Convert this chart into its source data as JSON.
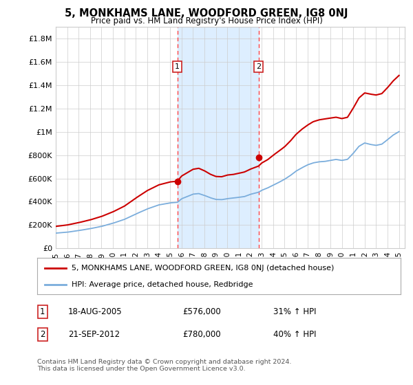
{
  "title": "5, MONKHAMS LANE, WOODFORD GREEN, IG8 0NJ",
  "subtitle": "Price paid vs. HM Land Registry's House Price Index (HPI)",
  "hpi_label": "HPI: Average price, detached house, Redbridge",
  "property_label": "5, MONKHAMS LANE, WOODFORD GREEN, IG8 0NJ (detached house)",
  "footer_line1": "Contains HM Land Registry data © Crown copyright and database right 2024.",
  "footer_line2": "This data is licensed under the Open Government Licence v3.0.",
  "sale1": {
    "label": "1",
    "date": "18-AUG-2005",
    "price": "£576,000",
    "hpi": "31% ↑ HPI"
  },
  "sale2": {
    "label": "2",
    "date": "21-SEP-2012",
    "price": "£780,000",
    "hpi": "40% ↑ HPI"
  },
  "sale1_year": 2005.63,
  "sale2_year": 2012.72,
  "sale1_price": 576000,
  "sale2_price": 780000,
  "property_color": "#cc0000",
  "hpi_color": "#7aaddc",
  "highlight_color": "#ddeeff",
  "grid_color": "#cccccc",
  "background_color": "#ffffff",
  "ylim": [
    0,
    1900000
  ],
  "xlim_start": 1995,
  "xlim_end": 2025.5,
  "yticks": [
    0,
    200000,
    400000,
    600000,
    800000,
    1000000,
    1200000,
    1400000,
    1600000,
    1800000
  ],
  "ylabels": [
    "£0",
    "£200K",
    "£400K",
    "£600K",
    "£800K",
    "£1M",
    "£1.2M",
    "£1.4M",
    "£1.6M",
    "£1.8M"
  ]
}
